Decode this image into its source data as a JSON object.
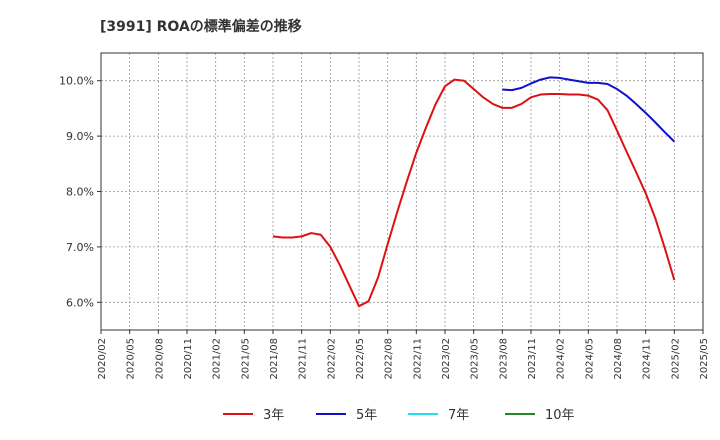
{
  "chart_data": {
    "type": "line",
    "title": "[3991]  ROAの標準偏差の推移",
    "xlabel": "",
    "ylabel": "",
    "ylim": [
      5.5,
      10.5
    ],
    "yticks": [
      6.0,
      7.0,
      8.0,
      9.0,
      10.0
    ],
    "ytick_labels": [
      "6.0%",
      "7.0%",
      "8.0%",
      "9.0%",
      "10.0%"
    ],
    "x_start": "2020/02",
    "x_end": "2025/05",
    "xtick_labels": [
      "2020/02",
      "2020/05",
      "2020/08",
      "2020/11",
      "2021/02",
      "2021/05",
      "2021/08",
      "2021/11",
      "2022/02",
      "2022/05",
      "2022/08",
      "2022/11",
      "2023/02",
      "2023/05",
      "2023/08",
      "2023/11",
      "2024/02",
      "2024/05",
      "2024/08",
      "2024/11",
      "2025/02",
      "2025/05"
    ],
    "grid": true,
    "legend_position": "bottom",
    "series": [
      {
        "name": "3年",
        "color": "#dd1111",
        "points": [
          [
            "2021/08",
            7.19
          ],
          [
            "2021/09",
            7.17
          ],
          [
            "2021/10",
            7.17
          ],
          [
            "2021/11",
            7.19
          ],
          [
            "2021/12",
            7.25
          ],
          [
            "2022/01",
            7.22
          ],
          [
            "2022/02",
            7.0
          ],
          [
            "2022/03",
            6.67
          ],
          [
            "2022/04",
            6.3
          ],
          [
            "2022/05",
            5.93
          ],
          [
            "2022/06",
            6.02
          ],
          [
            "2022/07",
            6.45
          ],
          [
            "2022/08",
            7.05
          ],
          [
            "2022/09",
            7.63
          ],
          [
            "2022/10",
            8.18
          ],
          [
            "2022/11",
            8.7
          ],
          [
            "2022/12",
            9.15
          ],
          [
            "2023/01",
            9.57
          ],
          [
            "2023/02",
            9.9
          ],
          [
            "2023/03",
            10.02
          ],
          [
            "2023/04",
            10.0
          ],
          [
            "2023/05",
            9.85
          ],
          [
            "2023/06",
            9.7
          ],
          [
            "2023/07",
            9.58
          ],
          [
            "2023/08",
            9.51
          ],
          [
            "2023/09",
            9.51
          ],
          [
            "2023/10",
            9.58
          ],
          [
            "2023/11",
            9.7
          ],
          [
            "2023/12",
            9.75
          ],
          [
            "2024/01",
            9.76
          ],
          [
            "2024/02",
            9.76
          ],
          [
            "2024/03",
            9.75
          ],
          [
            "2024/04",
            9.75
          ],
          [
            "2024/05",
            9.73
          ],
          [
            "2024/06",
            9.66
          ],
          [
            "2024/07",
            9.47
          ],
          [
            "2024/08",
            9.1
          ],
          [
            "2024/09",
            8.72
          ],
          [
            "2024/10",
            8.35
          ],
          [
            "2024/11",
            7.97
          ],
          [
            "2024/12",
            7.52
          ],
          [
            "2025/01",
            6.98
          ],
          [
            "2025/02",
            6.4
          ]
        ]
      },
      {
        "name": "5年",
        "color": "#1111cc",
        "points": [
          [
            "2023/08",
            9.84
          ],
          [
            "2023/09",
            9.83
          ],
          [
            "2023/10",
            9.87
          ],
          [
            "2023/11",
            9.95
          ],
          [
            "2023/12",
            10.02
          ],
          [
            "2024/01",
            10.06
          ],
          [
            "2024/02",
            10.05
          ],
          [
            "2024/03",
            10.02
          ],
          [
            "2024/04",
            9.99
          ],
          [
            "2024/05",
            9.96
          ],
          [
            "2024/06",
            9.96
          ],
          [
            "2024/07",
            9.94
          ],
          [
            "2024/08",
            9.85
          ],
          [
            "2024/09",
            9.73
          ],
          [
            "2024/10",
            9.58
          ],
          [
            "2024/11",
            9.42
          ],
          [
            "2024/12",
            9.25
          ],
          [
            "2025/01",
            9.07
          ],
          [
            "2025/02",
            8.9
          ]
        ]
      },
      {
        "name": "7年",
        "color": "#22ddee",
        "points": []
      },
      {
        "name": "10年",
        "color": "#228822",
        "points": []
      }
    ]
  }
}
